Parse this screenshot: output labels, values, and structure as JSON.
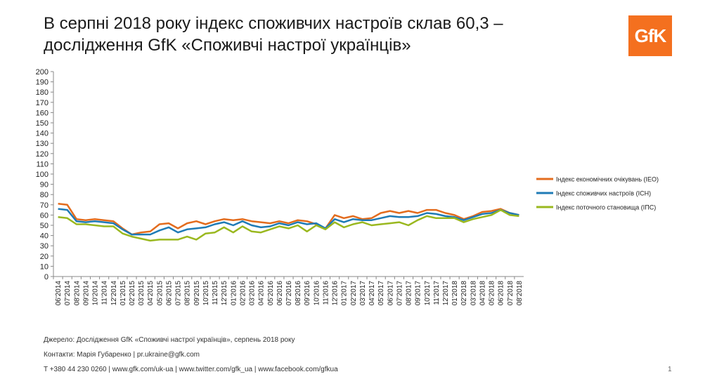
{
  "slide": {
    "title_line1": "В серпні 2018 року індекс споживчих настроїв склав 60,3 –",
    "title_line2": "дослідження GfK «Споживчі настрої українців»",
    "logo_text": "GfK",
    "logo_color": "#f4701f",
    "source": "Джерело: Дослідження GfK «Споживчі настрої українців», серпень 2018 року",
    "contacts": "Контакти: Марія Губаренко | pr.ukraine@gfk.com",
    "links": "T +380 44 230 0260 | www.gfk.com/uk-ua | www.twitter.com/gfk_ua | www.facebook.com/gfkua",
    "page_number": "1"
  },
  "chart_data": {
    "type": "line",
    "ylim": [
      0,
      200
    ],
    "yticks": [
      0,
      10,
      20,
      30,
      40,
      50,
      60,
      70,
      80,
      90,
      100,
      110,
      120,
      130,
      140,
      150,
      160,
      170,
      180,
      190,
      200
    ],
    "categories": [
      "06'2014",
      "07'2014",
      "08'2014",
      "09'2014",
      "10'2014",
      "11'2014",
      "12'2014",
      "01'2015",
      "02'2015",
      "03'2015",
      "04'2015",
      "05'2015",
      "06'2015",
      "07'2015",
      "08'2015",
      "09'2015",
      "10'2015",
      "11'2015",
      "12'2015",
      "01'2016",
      "02'2016",
      "03'2016",
      "04'2016",
      "05'2016",
      "06'2016",
      "07'2016",
      "08'2016",
      "09'2016",
      "10'2016",
      "11'2016",
      "12'2016",
      "01'2017",
      "02'2017",
      "03'2017",
      "04'2017",
      "05'2017",
      "06'2017",
      "07'2017",
      "08'2017",
      "09'2017",
      "10'2017",
      "11'2017",
      "12'2017",
      "01'2018",
      "02'2018",
      "03'2018",
      "04'2018",
      "05'2018",
      "06'2018",
      "07'2018",
      "08'2018"
    ],
    "series": [
      {
        "name": "Індекс економічних очікувань (IEO)",
        "color": "#e36c1e",
        "values": [
          71,
          70,
          56,
          55,
          56,
          55,
          54,
          47,
          41,
          43,
          44,
          51,
          52,
          47,
          52,
          54,
          51,
          54,
          56,
          55,
          56,
          54,
          53,
          52,
          54,
          52,
          55,
          54,
          51,
          47,
          60,
          57,
          59,
          56,
          57,
          62,
          64,
          62,
          64,
          62,
          65,
          65,
          62,
          60,
          56,
          59,
          63,
          64,
          66,
          62,
          60
        ]
      },
      {
        "name": "Індекс споживчих настроїв (ІСН)",
        "color": "#1f7bb6",
        "values": [
          66,
          65,
          54,
          53,
          54,
          53,
          52,
          46,
          41,
          41,
          41,
          45,
          48,
          43,
          46,
          47,
          48,
          51,
          53,
          50,
          54,
          50,
          48,
          49,
          52,
          50,
          53,
          51,
          52,
          47,
          56,
          53,
          56,
          55,
          55,
          57,
          59,
          58,
          58,
          59,
          62,
          61,
          59,
          58,
          55,
          58,
          61,
          62,
          65,
          62,
          60
        ]
      },
      {
        "name": "Індекс поточного становища (ІПС)",
        "color": "#9ab81f",
        "values": [
          58,
          57,
          51,
          51,
          50,
          49,
          49,
          42,
          39,
          37,
          35,
          36,
          36,
          36,
          39,
          36,
          42,
          43,
          48,
          43,
          49,
          44,
          43,
          46,
          49,
          47,
          50,
          44,
          50,
          46,
          53,
          48,
          51,
          53,
          50,
          51,
          52,
          53,
          50,
          55,
          59,
          57,
          57,
          57,
          53,
          56,
          58,
          60,
          65,
          60,
          59
        ]
      }
    ]
  }
}
